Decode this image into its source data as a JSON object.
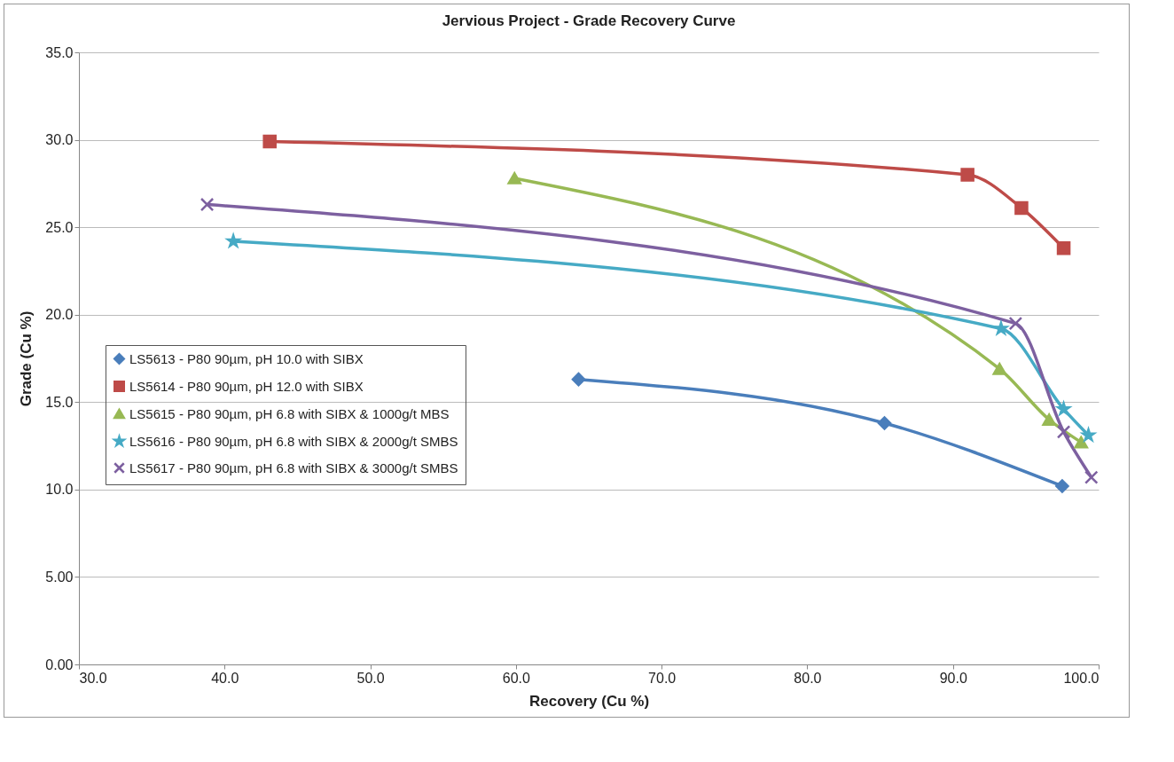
{
  "chart_data": {
    "type": "line",
    "title": "Jervious Project - Grade Recovery Curve",
    "xlabel": "Recovery (Cu %)",
    "ylabel": "Grade (Cu %)",
    "xlim": [
      30,
      100
    ],
    "xticks": [
      {
        "value": 30,
        "label": "30.0"
      },
      {
        "value": 40,
        "label": "40.0"
      },
      {
        "value": 50,
        "label": "50.0"
      },
      {
        "value": 60,
        "label": "60.0"
      },
      {
        "value": 70,
        "label": "70.0"
      },
      {
        "value": 80,
        "label": "80.0"
      },
      {
        "value": 90,
        "label": "90.0"
      },
      {
        "value": 100,
        "label": "100.0"
      }
    ],
    "ylim": [
      0,
      35
    ],
    "yticks": [
      {
        "value": 0,
        "label": "0.00"
      },
      {
        "value": 5,
        "label": "5.00"
      },
      {
        "value": 10,
        "label": "10.0"
      },
      {
        "value": 15,
        "label": "15.0"
      },
      {
        "value": 20,
        "label": "20.0"
      },
      {
        "value": 25,
        "label": "25.0"
      },
      {
        "value": 30,
        "label": "30.0"
      },
      {
        "value": 35,
        "label": "35.0"
      }
    ],
    "grid": "y",
    "legend": "left",
    "line_style": "solid",
    "series": [
      {
        "name": "LS5613 - P80 90µm, pH 10.0 with SIBX",
        "color": "#4a7ebb",
        "marker": "diamond",
        "x": [
          64.3,
          85.3,
          97.5
        ],
        "values": [
          16.3,
          13.8,
          10.2
        ]
      },
      {
        "name": "LS5614 - P80 90µm, pH 12.0 with SIBX",
        "color": "#be4b48",
        "marker": "square",
        "x": [
          43.1,
          91.0,
          94.7,
          97.6
        ],
        "values": [
          29.9,
          28.0,
          26.1,
          23.8
        ]
      },
      {
        "name": "LS5615 - P80 90µm, pH 6.8 with SIBX & 1000g/t MBS",
        "color": "#98b954",
        "marker": "triangle",
        "x": [
          59.9,
          93.2,
          96.6,
          98.8
        ],
        "values": [
          27.8,
          16.9,
          14.0,
          12.7
        ]
      },
      {
        "name": "LS5616 - P80 90µm, pH 6.8 with SIBX & 2000g/t SMBS",
        "color": "#46aac5",
        "marker": "star",
        "x": [
          40.6,
          93.3,
          97.6,
          99.3
        ],
        "values": [
          24.2,
          19.2,
          14.6,
          13.1
        ]
      },
      {
        "name": "LS5617 - P80 90µm, pH 6.8 with SIBX & 3000g/t SMBS",
        "color": "#7d60a0",
        "marker": "cross",
        "x": [
          38.8,
          94.3,
          97.6,
          99.5
        ],
        "values": [
          26.3,
          19.5,
          13.3,
          10.7
        ]
      }
    ]
  }
}
